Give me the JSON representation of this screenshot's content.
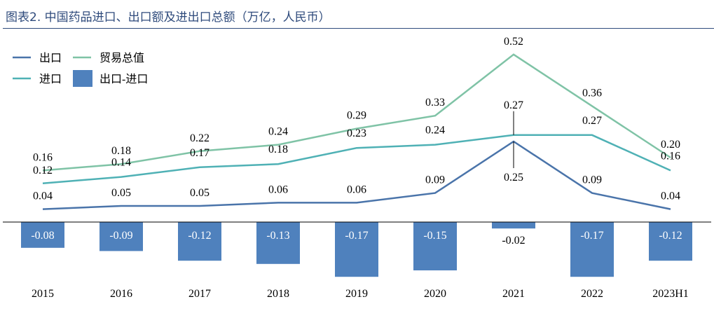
{
  "title": "图表2. 中国药品进口、出口额及进出口总额（万亿，人民币）",
  "chart_data": {
    "type": "line+bar",
    "title": "图表2. 中国药品进口、出口额及进出口总额（万亿，人民币）",
    "categories": [
      "2015",
      "2016",
      "2017",
      "2018",
      "2019",
      "2020",
      "2021",
      "2022",
      "2023H1"
    ],
    "series": [
      {
        "name": "出口",
        "type": "line",
        "color": "#4a74aa",
        "values": [
          0.04,
          0.05,
          0.05,
          0.06,
          0.06,
          0.09,
          0.25,
          0.09,
          0.04
        ],
        "labels": [
          "0.04",
          "0.05",
          "0.05",
          "0.06",
          "0.06",
          "0.09",
          "0.25",
          "0.09",
          "0.04"
        ]
      },
      {
        "name": "贸易总值",
        "type": "line",
        "color": "#7fc3a6",
        "values": [
          0.16,
          0.18,
          0.22,
          0.24,
          0.29,
          0.33,
          0.52,
          0.36,
          0.2
        ],
        "labels": [
          "0.16",
          "0.18",
          "0.22",
          "0.24",
          "0.29",
          "0.33",
          "0.52",
          "0.36",
          "0.20"
        ]
      },
      {
        "name": "进口",
        "type": "line",
        "color": "#4fb1b5",
        "values": [
          0.12,
          0.14,
          0.17,
          0.18,
          0.23,
          0.24,
          0.27,
          0.27,
          0.16
        ],
        "labels": [
          "0.12",
          "0.14",
          "0.17",
          "0.18",
          "0.23",
          "0.24",
          "0.27",
          "0.27",
          "0.16"
        ]
      },
      {
        "name": "出口-进口",
        "type": "bar",
        "color": "#4f81bd",
        "values": [
          -0.08,
          -0.09,
          -0.12,
          -0.13,
          -0.17,
          -0.15,
          -0.02,
          -0.17,
          -0.12
        ],
        "labels": [
          "-0.08",
          "-0.09",
          "-0.12",
          "-0.13",
          "-0.17",
          "-0.15",
          "-0.02",
          "-0.17",
          "-0.12"
        ]
      }
    ],
    "legend_position": "top-left",
    "grid": false
  }
}
